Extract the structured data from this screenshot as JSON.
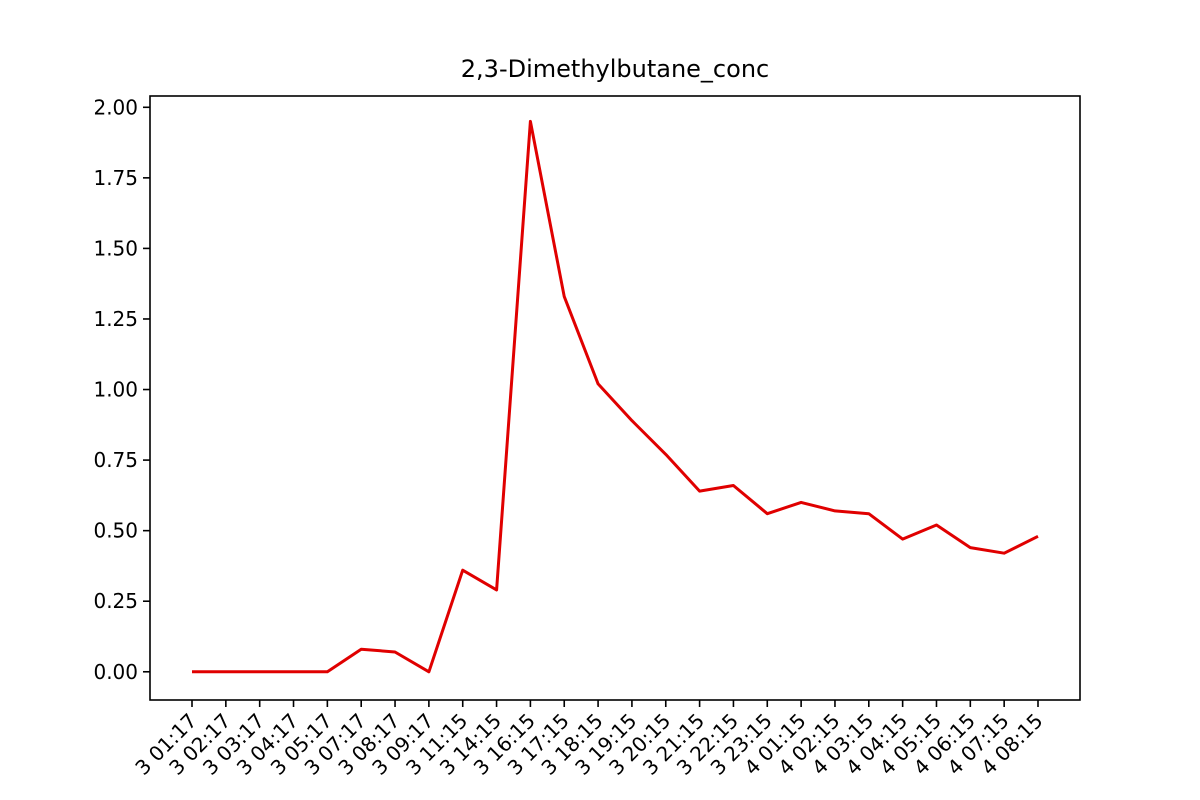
{
  "chart_data": {
    "type": "line",
    "title": "2,3-Dimethylbutane_conc",
    "xlabel": "",
    "ylabel": "",
    "ylim": [
      -0.1,
      2.04
    ],
    "yticks": [
      0.0,
      0.25,
      0.5,
      0.75,
      1.0,
      1.25,
      1.5,
      1.75,
      2.0
    ],
    "ytick_labels": [
      "0.00",
      "0.25",
      "0.50",
      "0.75",
      "1.00",
      "1.25",
      "1.50",
      "1.75",
      "2.00"
    ],
    "grid": false,
    "x": [
      "3 01:17",
      "3 02:17",
      "3 03:17",
      "3 04:17",
      "3 05:17",
      "3 07:17",
      "3 08:17",
      "3 09:17",
      "3 11:15",
      "3 14:15",
      "3 16:15",
      "3 17:15",
      "3 18:15",
      "3 19:15",
      "3 20:15",
      "3 21:15",
      "3 22:15",
      "3 23:15",
      "4 01:15",
      "4 02:15",
      "4 03:15",
      "4 04:15",
      "4 05:15",
      "4 06:15",
      "4 07:15",
      "4 08:15"
    ],
    "series": [
      {
        "color": "#e00000",
        "values": [
          0.0,
          0.0,
          0.0,
          0.0,
          0.0,
          0.08,
          0.07,
          0.0,
          0.36,
          0.29,
          1.95,
          1.33,
          1.02,
          0.89,
          0.77,
          0.64,
          0.66,
          0.56,
          0.6,
          0.57,
          0.56,
          0.47,
          0.52,
          0.44,
          0.42,
          0.48
        ]
      }
    ]
  }
}
